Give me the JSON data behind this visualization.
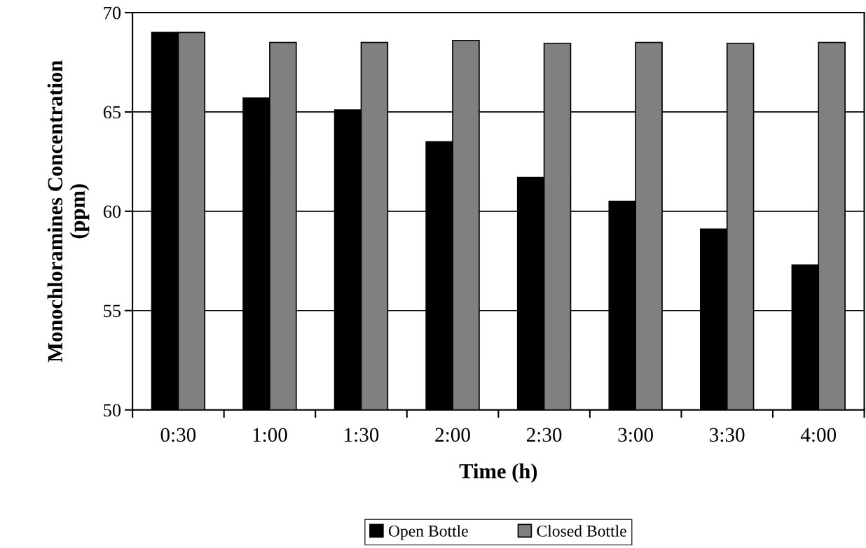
{
  "chart_data": {
    "type": "bar",
    "xlabel": "Time (h)",
    "ylabel": "Monochloramines Concentration\n(ppm)",
    "categories": [
      "0:30",
      "1:00",
      "1:30",
      "2:00",
      "2:30",
      "3:00",
      "3:30",
      "4:00"
    ],
    "series": [
      {
        "name": "Open Bottle",
        "color": "#000000",
        "values": [
          69.0,
          65.7,
          65.1,
          63.5,
          61.7,
          60.5,
          59.1,
          57.3
        ]
      },
      {
        "name": "Closed Bottle",
        "color": "#808080",
        "values": [
          69.0,
          68.5,
          68.5,
          68.6,
          68.45,
          68.5,
          68.45,
          68.5
        ]
      }
    ],
    "ylim": [
      50,
      70
    ],
    "yticks": [
      50,
      55,
      60,
      65,
      70
    ],
    "grid": "y",
    "legend": "bottom"
  }
}
